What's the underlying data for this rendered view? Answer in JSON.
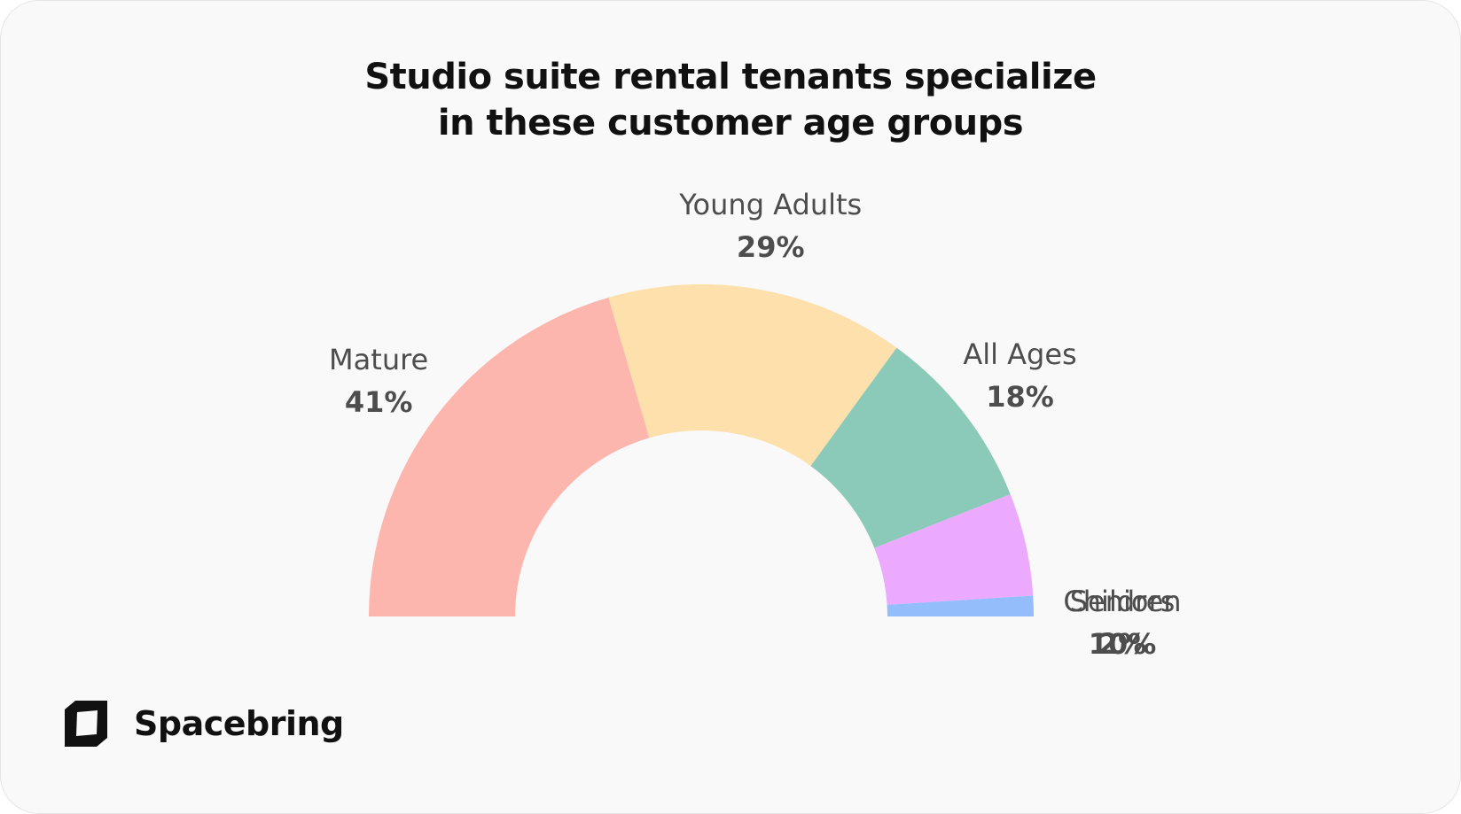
{
  "title_lines": [
    "Studio suite rental tenants specialize",
    "in these customer age groups"
  ],
  "brand": {
    "name": "Spacebring",
    "logo_icon": "spacebring-logo-icon"
  },
  "chart_data": {
    "type": "pie",
    "variant": "half-donut",
    "title": "Studio suite rental tenants specialize in these customer age groups",
    "slices": [
      {
        "label": "Mature",
        "value_label": "41%",
        "value": 41,
        "color": "#fdb6ae"
      },
      {
        "label": "Young Adults",
        "value_label": "29%",
        "value": 29,
        "color": "#fde0ab"
      },
      {
        "label": "All Ages",
        "value_label": "18%",
        "value": 18,
        "color": "#8bc9b8"
      },
      {
        "label": "Seniors",
        "value_label": "10%",
        "value": 10,
        "color": "#ebaafd"
      },
      {
        "label": "Children",
        "value_label": "2%",
        "value": 2,
        "color": "#94bdfb"
      }
    ]
  }
}
